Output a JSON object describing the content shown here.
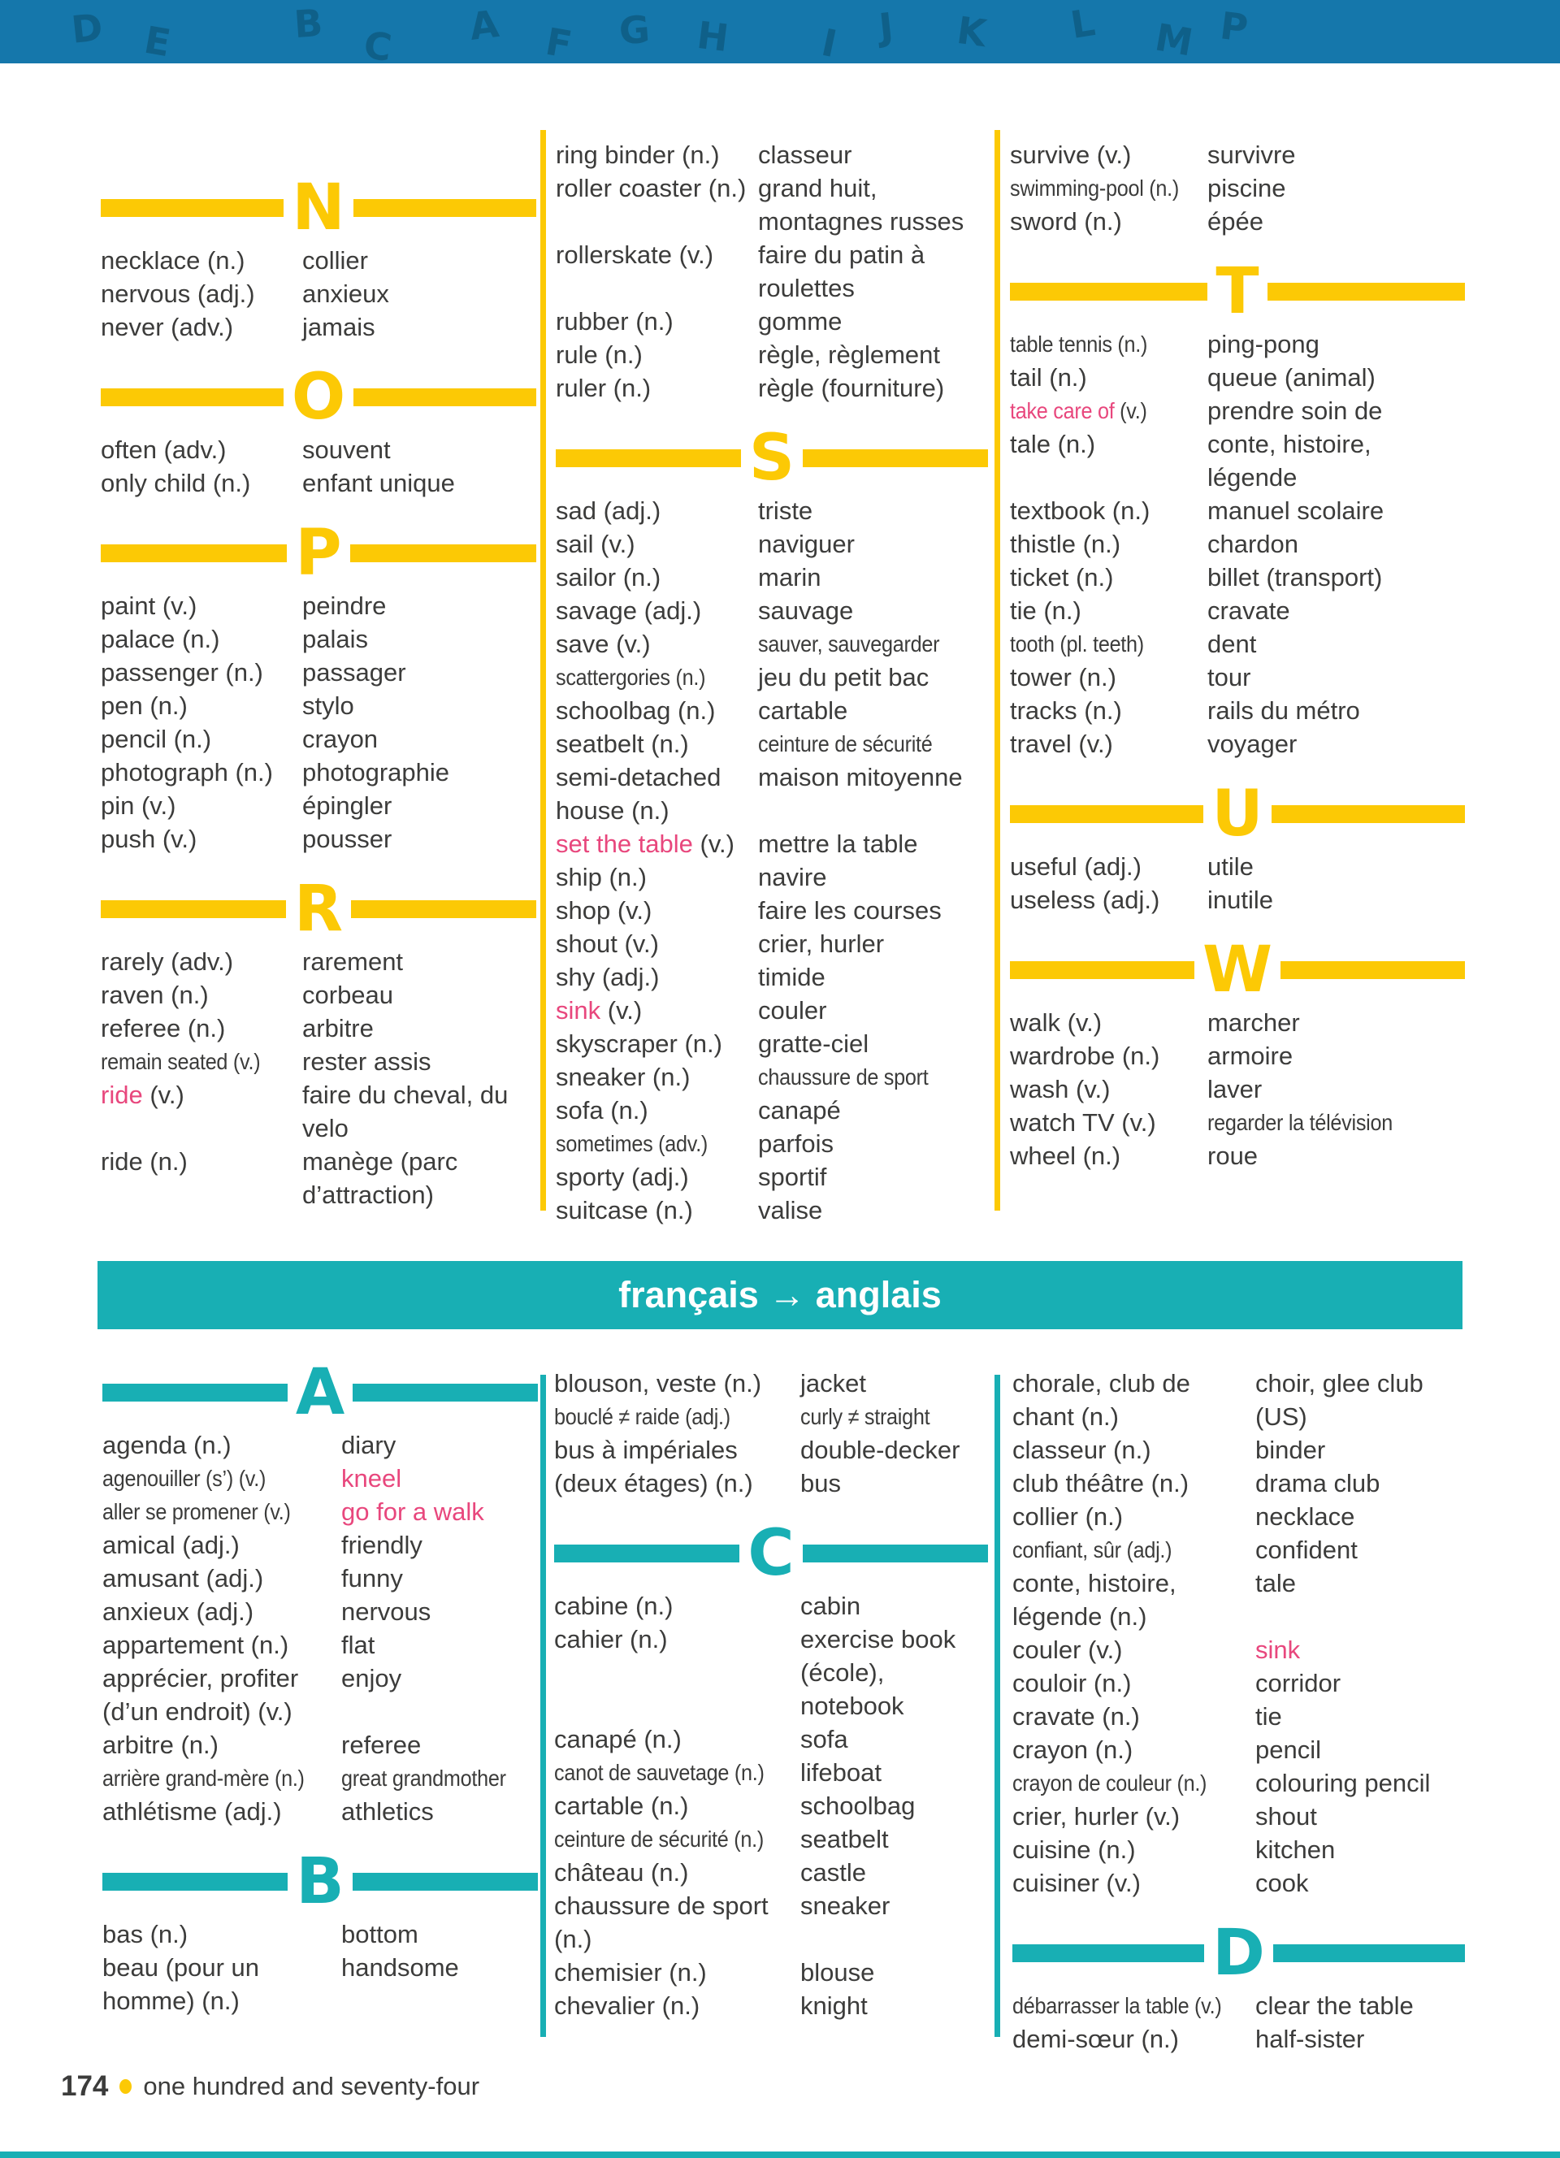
{
  "colors": {
    "yellow": "#FCC905",
    "teal": "#18AFB4",
    "blue": "#1577AB",
    "pink": "#E8477D",
    "text": "#3C3C3B"
  },
  "banner_letters": [
    "D",
    "E",
    "B",
    "C",
    "A",
    "F",
    "G",
    "H",
    "I",
    "J",
    "K",
    "L",
    "M",
    "P"
  ],
  "divider_banner": {
    "label": "français → anglais"
  },
  "footer": {
    "page_number": "174",
    "page_words": "one hundred and seventy-four"
  },
  "top": {
    "columns": [
      {
        "groups": [
          {
            "letter": "N",
            "entries": [
              {
                "term": "necklace (n.)",
                "trans": "collier"
              },
              {
                "term": "nervous (adj.)",
                "trans": "anxieux"
              },
              {
                "term": "never (adv.)",
                "trans": "jamais"
              }
            ]
          },
          {
            "letter": "O",
            "entries": [
              {
                "term": "often (adv.)",
                "trans": "souvent"
              },
              {
                "term": "only child (n.)",
                "trans": "enfant unique"
              }
            ]
          },
          {
            "letter": "P",
            "entries": [
              {
                "term": "paint (v.)",
                "trans": "peindre"
              },
              {
                "term": "palace (n.)",
                "trans": "palais"
              },
              {
                "term": "passenger (n.)",
                "trans": "passager"
              },
              {
                "term": "pen (n.)",
                "trans": "stylo"
              },
              {
                "term": "pencil (n.)",
                "trans": "crayon"
              },
              {
                "term": "photograph (n.)",
                "trans": "photographie"
              },
              {
                "term": "pin (v.)",
                "trans": "épingler"
              },
              {
                "term": "push (v.)",
                "trans": "pousser"
              }
            ]
          },
          {
            "letter": "R",
            "entries": [
              {
                "term": "rarely (adv.)",
                "trans": "rarement"
              },
              {
                "term": "raven (n.)",
                "trans": "corbeau"
              },
              {
                "term": "referee (n.)",
                "trans": "arbitre"
              },
              {
                "term": "remain seated (v.)",
                "trans": "rester assis",
                "term_fit": true
              },
              {
                "term": "ride (v.)",
                "term_pink": "ride",
                "trans": "faire du cheval, du velo"
              },
              {
                "term": "ride (n.)",
                "trans": "manège (parc d’attraction)"
              }
            ]
          }
        ]
      },
      {
        "groups": [
          {
            "letter": null,
            "entries": [
              {
                "term": "ring binder (n.)",
                "trans": "classeur"
              },
              {
                "term": "roller coaster (n.)",
                "trans": "grand huit, montagnes russes"
              },
              {
                "term": "rollerskate (v.)",
                "trans": "faire du patin à roulettes"
              },
              {
                "term": "rubber (n.)",
                "trans": "gomme"
              },
              {
                "term": "rule (n.)",
                "trans": "règle, règlement"
              },
              {
                "term": "ruler (n.)",
                "trans": "règle (fourniture)"
              }
            ]
          },
          {
            "letter": "S",
            "entries": [
              {
                "term": "sad (adj.)",
                "trans": "triste"
              },
              {
                "term": "sail (v.)",
                "trans": "naviguer"
              },
              {
                "term": "sailor (n.)",
                "trans": "marin"
              },
              {
                "term": "savage (adj.)",
                "trans": "sauvage"
              },
              {
                "term": "save (v.)",
                "trans": "sauver, sauvegarder",
                "trans_fit": true
              },
              {
                "term": "scattergories (n.)",
                "trans": "jeu du petit bac",
                "term_fit": true
              },
              {
                "term": "schoolbag (n.)",
                "trans": "cartable"
              },
              {
                "term": "seatbelt (n.)",
                "trans": "ceinture de sécurité",
                "trans_fit": true
              },
              {
                "term": "semi-detached house (n.)",
                "trans": "maison mitoyenne"
              },
              {
                "term": "set the table (v.)",
                "term_pink": "set the table",
                "trans": "mettre la table"
              },
              {
                "term": "ship (n.)",
                "trans": "navire"
              },
              {
                "term": "shop (v.)",
                "trans": "faire les courses"
              },
              {
                "term": "shout (v.)",
                "trans": "crier, hurler"
              },
              {
                "term": "shy (adj.)",
                "trans": "timide"
              },
              {
                "term": "sink (v.)",
                "term_pink": "sink",
                "trans": "couler"
              },
              {
                "term": "skyscraper (n.)",
                "trans": "gratte-ciel"
              },
              {
                "term": "sneaker (n.)",
                "trans": "chaussure de sport",
                "trans_fit": true
              },
              {
                "term": "sofa (n.)",
                "trans": "canapé"
              },
              {
                "term": "sometimes (adv.)",
                "trans": "parfois",
                "term_fit": true
              },
              {
                "term": "sporty (adj.)",
                "trans": "sportif"
              },
              {
                "term": "suitcase (n.)",
                "trans": "valise"
              }
            ]
          }
        ]
      },
      {
        "groups": [
          {
            "letter": null,
            "entries": [
              {
                "term": "survive (v.)",
                "trans": "survivre"
              },
              {
                "term": "swimming-pool (n.)",
                "trans": "piscine",
                "term_fit": true
              },
              {
                "term": "sword (n.)",
                "trans": "épée"
              }
            ]
          },
          {
            "letter": "T",
            "entries": [
              {
                "term": "table tennis (n.)",
                "trans": "ping-pong",
                "term_fit": true
              },
              {
                "term": "tail (n.)",
                "trans": "queue (animal)"
              },
              {
                "term": "take care of (v.)",
                "term_pink": "take care of",
                "trans": "prendre soin de",
                "term_fit": true
              },
              {
                "term": "tale (n.)",
                "trans": "conte, histoire, légende"
              },
              {
                "term": "textbook (n.)",
                "trans": "manuel scolaire"
              },
              {
                "term": "thistle (n.)",
                "trans": "chardon"
              },
              {
                "term": "ticket (n.)",
                "trans": "billet (transport)"
              },
              {
                "term": "tie (n.)",
                "trans": "cravate"
              },
              {
                "term": "tooth (pl. teeth)",
                "trans": "dent",
                "term_fit": true
              },
              {
                "term": "tower (n.)",
                "trans": "tour"
              },
              {
                "term": "tracks (n.)",
                "trans": "rails du métro"
              },
              {
                "term": "travel (v.)",
                "trans": "voyager"
              }
            ]
          },
          {
            "letter": "U",
            "entries": [
              {
                "term": "useful (adj.)",
                "trans": "utile"
              },
              {
                "term": "useless (adj.)",
                "trans": "inutile"
              }
            ]
          },
          {
            "letter": "W",
            "entries": [
              {
                "term": "walk (v.)",
                "trans": "marcher"
              },
              {
                "term": "wardrobe (n.)",
                "trans": "armoire"
              },
              {
                "term": "wash (v.)",
                "trans": "laver"
              },
              {
                "term": "watch TV (v.)",
                "trans": "regarder la télévision",
                "trans_fit": true
              },
              {
                "term": "wheel (n.)",
                "trans": "roue"
              }
            ]
          }
        ]
      }
    ]
  },
  "bottom": {
    "columns": [
      {
        "groups": [
          {
            "letter": "A",
            "entries": [
              {
                "term": "agenda (n.)",
                "trans": "diary"
              },
              {
                "term": "agenouiller (s’) (v.)",
                "trans": "kneel",
                "trans_pink": true,
                "term_fit": true
              },
              {
                "term": "aller se promener (v.)",
                "trans": "go for a walk",
                "trans_pink": true,
                "term_fit": true
              },
              {
                "term": "amical (adj.)",
                "trans": "friendly"
              },
              {
                "term": "amusant (adj.)",
                "trans": "funny"
              },
              {
                "term": "anxieux (adj.)",
                "trans": "nervous"
              },
              {
                "term": "appartement (n.)",
                "trans": "flat"
              },
              {
                "term": "apprécier, profiter (d’un endroit) (v.)",
                "trans": "enjoy"
              },
              {
                "term": "arbitre (n.)",
                "trans": "referee"
              },
              {
                "term": "arrière grand-mère (n.)",
                "trans": "great grandmother",
                "term_fit": true,
                "trans_fit": true
              },
              {
                "term": "athlétisme (adj.)",
                "trans": "athletics"
              }
            ]
          },
          {
            "letter": "B",
            "entries": [
              {
                "term": "bas (n.)",
                "trans": "bottom"
              },
              {
                "term": "beau (pour un homme) (n.)",
                "trans": "handsome"
              }
            ]
          }
        ]
      },
      {
        "groups": [
          {
            "letter": null,
            "entries": [
              {
                "term": "blouson, veste (n.)",
                "trans": "jacket"
              },
              {
                "term": "bouclé ≠ raide (adj.)",
                "trans": "curly ≠ straight",
                "term_fit": true,
                "trans_fit": true
              },
              {
                "term": "bus à impériales (deux étages) (n.)",
                "trans": "double-decker bus"
              }
            ]
          },
          {
            "letter": "C",
            "entries": [
              {
                "term": "cabine (n.)",
                "trans": "cabin"
              },
              {
                "term": "cahier (n.)",
                "trans": "exercise book (école), notebook"
              },
              {
                "term": "canapé (n.)",
                "trans": "sofa"
              },
              {
                "term": "canot de sauvetage (n.)",
                "trans": "lifeboat",
                "term_fit": true
              },
              {
                "term": "cartable (n.)",
                "trans": "schoolbag"
              },
              {
                "term": "ceinture de sécurité (n.)",
                "trans": "seatbelt",
                "term_fit": true
              },
              {
                "term": "château (n.)",
                "trans": "castle"
              },
              {
                "term": "chaussure de sport (n.)",
                "trans": "sneaker"
              },
              {
                "term": "chemisier (n.)",
                "trans": "blouse"
              },
              {
                "term": "chevalier (n.)",
                "trans": "knight"
              }
            ]
          }
        ]
      },
      {
        "groups": [
          {
            "letter": null,
            "entries": [
              {
                "term": "chorale, club de chant (n.)",
                "trans": "choir, glee club (US)"
              },
              {
                "term": "classeur (n.)",
                "trans": "binder"
              },
              {
                "term": "club théâtre (n.)",
                "trans": "drama club"
              },
              {
                "term": "collier (n.)",
                "trans": "necklace"
              },
              {
                "term": "confiant, sûr (adj.)",
                "trans": "confident",
                "term_fit": true
              },
              {
                "term": "conte, histoire, légende (n.)",
                "trans": "tale"
              },
              {
                "term": "couler (v.)",
                "trans": "sink",
                "trans_pink": true
              },
              {
                "term": "couloir (n.)",
                "trans": "corridor"
              },
              {
                "term": "cravate (n.)",
                "trans": "tie"
              },
              {
                "term": "crayon (n.)",
                "trans": "pencil"
              },
              {
                "term": "crayon de couleur (n.)",
                "trans": "colouring pencil",
                "term_fit": true
              },
              {
                "term": "crier, hurler (v.)",
                "trans": "shout"
              },
              {
                "term": "cuisine (n.)",
                "trans": "kitchen"
              },
              {
                "term": "cuisiner (v.)",
                "trans": "cook"
              }
            ]
          },
          {
            "letter": "D",
            "entries": [
              {
                "term": "débarrasser la table (v.)",
                "trans": "clear the table",
                "term_fit": true
              },
              {
                "term": "demi-sœur (n.)",
                "trans": "half-sister"
              }
            ]
          }
        ]
      }
    ]
  }
}
